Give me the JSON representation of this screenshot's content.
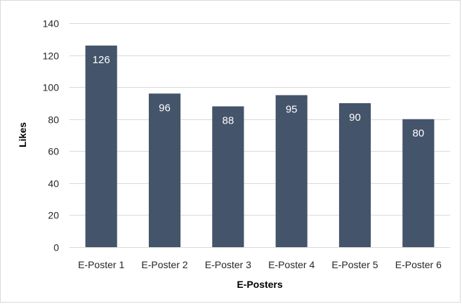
{
  "chart_data": {
    "type": "bar",
    "categories": [
      "E-Poster 1",
      "E-Poster 2",
      "E-Poster 3",
      "E-Poster 4",
      "E-Poster 5",
      "E-Poster 6"
    ],
    "values": [
      126,
      96,
      88,
      95,
      90,
      80
    ],
    "xlabel": "E-Posters",
    "ylabel": "Likes",
    "ylim": [
      0,
      140
    ],
    "yticks": [
      0,
      20,
      40,
      60,
      80,
      100,
      120,
      140
    ],
    "grid": true,
    "data_labels": true,
    "bar_color": "#44546a",
    "grid_color": "#d9d9d9"
  }
}
